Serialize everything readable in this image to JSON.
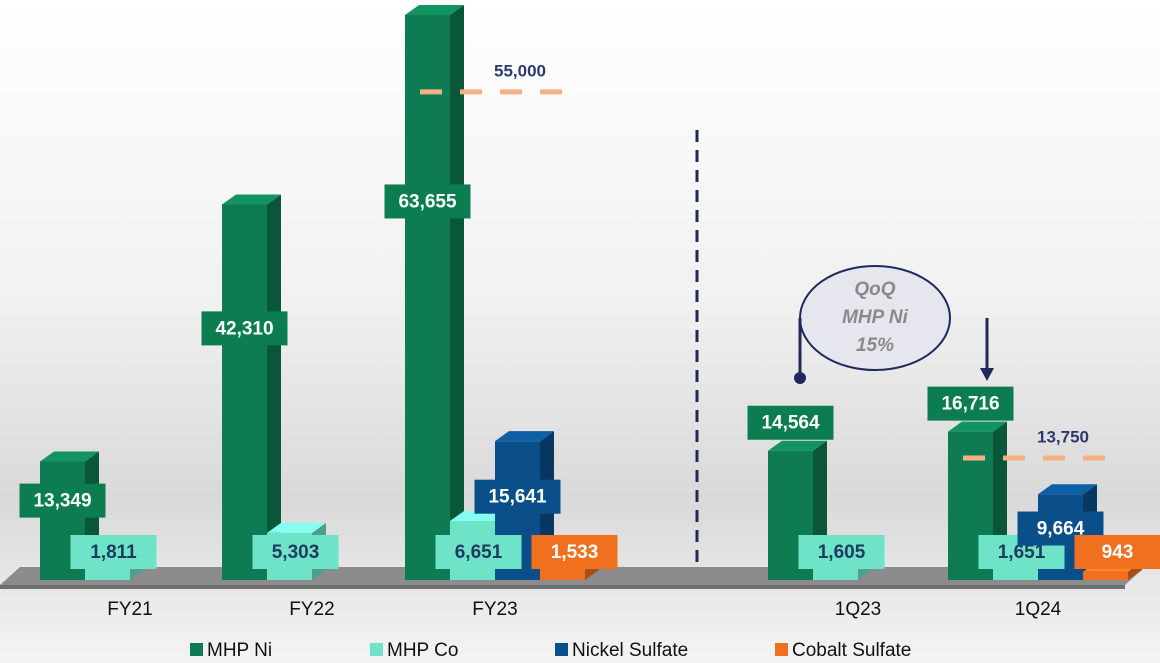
{
  "chart_data": {
    "type": "bar3d",
    "categories": [
      "FY21",
      "FY22",
      "FY23",
      "1Q23",
      "1Q24"
    ],
    "series": [
      {
        "name": "MHP Ni",
        "color": "#0e7b52",
        "values": [
          13349,
          42310,
          63655,
          14564,
          16716
        ],
        "value_labels": [
          "13,349",
          "42,310",
          "63,655",
          "14,564",
          "16,716"
        ]
      },
      {
        "name": "MHP Co",
        "color": "#6fe3c8",
        "values": [
          1811,
          5303,
          6651,
          1605,
          1651
        ],
        "value_labels": [
          "1,811",
          "5,303",
          "6,651",
          "1,605",
          "1,651"
        ]
      },
      {
        "name": "Nickel Sulfate",
        "color": "#0b4f8a",
        "values": [
          null,
          null,
          15641,
          null,
          9664
        ],
        "value_labels": [
          null,
          null,
          "15,641",
          null,
          "9,664"
        ]
      },
      {
        "name": "Cobalt Sulfate",
        "color": "#f07020",
        "values": [
          null,
          null,
          1533,
          null,
          943
        ],
        "value_labels": [
          null,
          null,
          "1,533",
          null,
          "943"
        ]
      }
    ],
    "targets": {
      "color": "#f4b183",
      "values": [
        null,
        null,
        55000,
        null,
        13750
      ],
      "value_labels": [
        null,
        null,
        "55,000",
        null,
        "13,750"
      ]
    },
    "annotation": [
      "QoQ",
      "MHP Ni",
      "15%"
    ]
  }
}
